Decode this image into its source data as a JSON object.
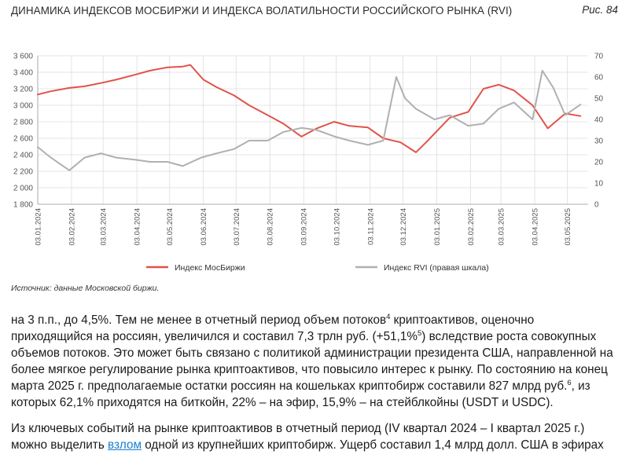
{
  "header": {
    "title": "ДИНАМИКА ИНДЕКСОВ МОСБИРЖИ И ИНДЕКСА ВОЛАТИЛЬНОСТИ РОССИЙСКОГО РЫНКА (RVI)",
    "figure_label": "Рис. 84"
  },
  "source": "Источник: данные Московской биржи.",
  "colors": {
    "moex": "#e0534a",
    "rvi": "#b0b0b0",
    "grid": "#dcdcdc",
    "axis_text": "#555555"
  },
  "chart_data": {
    "type": "line",
    "x_tick_labels": [
      "03.01.2024",
      "03.02.2024",
      "03.03.2024",
      "03.04.2024",
      "03.05.2024",
      "03.06.2024",
      "03.07.2024",
      "03.08.2024",
      "03.09.2024",
      "03.10.2024",
      "03.11.2024",
      "03.12.2024",
      "03.01.2025",
      "03.02.2025",
      "03.03.2025",
      "03.04.2025",
      "03.05.2025"
    ],
    "y_left": {
      "ticks": [
        "1 800",
        "2 000",
        "2 200",
        "2 400",
        "2 600",
        "2 800",
        "3 000",
        "3 200",
        "3 400",
        "3 600"
      ],
      "lim": [
        1800,
        3600
      ]
    },
    "y_right": {
      "ticks": [
        "0",
        "10",
        "20",
        "30",
        "40",
        "50",
        "60",
        "70"
      ],
      "lim": [
        0,
        70
      ]
    },
    "series": [
      {
        "name": "Индекс МосБиржи",
        "axis": "left",
        "x": [
          "2024-01-03",
          "2024-01-15",
          "2024-02-01",
          "2024-02-15",
          "2024-03-01",
          "2024-03-15",
          "2024-04-01",
          "2024-04-15",
          "2024-05-01",
          "2024-05-15",
          "2024-05-22",
          "2024-06-03",
          "2024-06-15",
          "2024-07-01",
          "2024-07-15",
          "2024-08-01",
          "2024-08-15",
          "2024-09-01",
          "2024-09-15",
          "2024-10-01",
          "2024-10-15",
          "2024-11-01",
          "2024-11-15",
          "2024-12-01",
          "2024-12-15",
          "2024-12-25",
          "2025-01-15",
          "2025-02-01",
          "2025-02-15",
          "2025-03-01",
          "2025-03-15",
          "2025-04-01",
          "2025-04-15",
          "2025-05-01",
          "2025-05-15"
        ],
        "values": [
          3130,
          3170,
          3210,
          3230,
          3270,
          3310,
          3370,
          3420,
          3460,
          3470,
          3490,
          3310,
          3220,
          3120,
          3000,
          2880,
          2780,
          2620,
          2720,
          2800,
          2750,
          2730,
          2600,
          2550,
          2430,
          2560,
          2850,
          2920,
          3200,
          3250,
          3180,
          3000,
          2720,
          2900,
          2870
        ]
      },
      {
        "name": "Индекс RVI (правая шкала)",
        "axis": "right",
        "x": [
          "2024-01-03",
          "2024-01-15",
          "2024-02-01",
          "2024-02-15",
          "2024-03-01",
          "2024-03-15",
          "2024-04-01",
          "2024-04-15",
          "2024-05-01",
          "2024-05-15",
          "2024-06-01",
          "2024-06-15",
          "2024-07-01",
          "2024-07-15",
          "2024-08-01",
          "2024-08-15",
          "2024-09-01",
          "2024-09-15",
          "2024-10-01",
          "2024-10-15",
          "2024-11-01",
          "2024-11-15",
          "2024-11-27",
          "2024-12-05",
          "2024-12-15",
          "2025-01-01",
          "2025-01-15",
          "2025-02-01",
          "2025-02-15",
          "2025-03-01",
          "2025-03-15",
          "2025-04-01",
          "2025-04-10",
          "2025-04-20",
          "2025-05-01",
          "2025-05-15"
        ],
        "values": [
          27,
          22,
          16,
          22,
          24,
          22,
          21,
          20,
          20,
          18,
          22,
          24,
          26,
          30,
          30,
          34,
          36,
          35,
          32,
          30,
          28,
          30,
          60,
          50,
          45,
          40,
          42,
          37,
          38,
          45,
          48,
          40,
          63,
          55,
          42,
          47
        ]
      }
    ]
  }
}
